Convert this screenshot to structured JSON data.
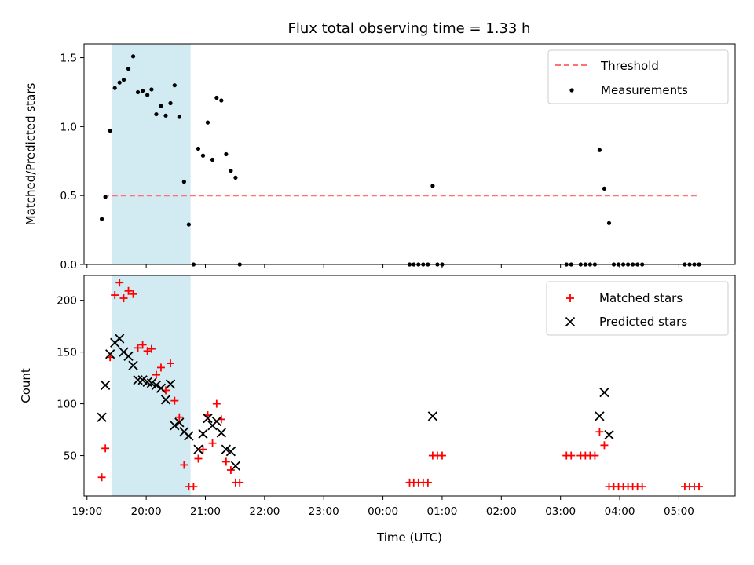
{
  "chart_data": [
    {
      "type": "scatter",
      "title": "Flux total observing time = 1.33 h",
      "xlabel": "",
      "ylabel": "Matched/Predicted stars",
      "xlim": [
        18.95,
        29.95
      ],
      "ylim": [
        0,
        1.6
      ],
      "yticks": [
        "0.0",
        "0.5",
        "1.0",
        "1.5"
      ],
      "highlight_span": [
        19.42,
        20.75
      ],
      "highlight_color": "#add8e6",
      "legend_position": "top-right",
      "grid": false,
      "threshold": {
        "name": "Threshold",
        "y": 0.5,
        "x_range": [
          19.28,
          29.35
        ],
        "color": "#ff7070"
      },
      "series": [
        {
          "name": "Measurements",
          "color": "#000000",
          "marker": "dot",
          "points": [
            [
              19.25,
              0.33
            ],
            [
              19.31,
              0.49
            ],
            [
              19.39,
              0.97
            ],
            [
              19.47,
              1.28
            ],
            [
              19.55,
              1.32
            ],
            [
              19.62,
              1.34
            ],
            [
              19.7,
              1.42
            ],
            [
              19.78,
              1.51
            ],
            [
              19.86,
              1.25
            ],
            [
              19.94,
              1.26
            ],
            [
              20.02,
              1.23
            ],
            [
              20.09,
              1.27
            ],
            [
              20.17,
              1.09
            ],
            [
              20.25,
              1.15
            ],
            [
              20.33,
              1.08
            ],
            [
              20.41,
              1.17
            ],
            [
              20.48,
              1.3
            ],
            [
              20.56,
              1.07
            ],
            [
              20.64,
              0.6
            ],
            [
              20.72,
              0.29
            ],
            [
              20.8,
              0.0
            ],
            [
              20.88,
              0.84
            ],
            [
              20.96,
              0.79
            ],
            [
              21.04,
              1.03
            ],
            [
              21.12,
              0.76
            ],
            [
              21.19,
              1.21
            ],
            [
              21.27,
              1.19
            ],
            [
              21.35,
              0.8
            ],
            [
              21.43,
              0.68
            ],
            [
              21.51,
              0.63
            ],
            [
              21.58,
              0.0
            ],
            [
              24.45,
              0.0
            ],
            [
              24.52,
              0.0
            ],
            [
              24.6,
              0.0
            ],
            [
              24.68,
              0.0
            ],
            [
              24.76,
              0.0
            ],
            [
              24.84,
              0.57
            ],
            [
              24.92,
              0.0
            ],
            [
              25.0,
              0.0
            ],
            [
              27.1,
              0.0
            ],
            [
              27.18,
              0.0
            ],
            [
              27.34,
              0.0
            ],
            [
              27.42,
              0.0
            ],
            [
              27.5,
              0.0
            ],
            [
              27.58,
              0.0
            ],
            [
              27.66,
              0.83
            ],
            [
              27.74,
              0.55
            ],
            [
              27.82,
              0.3
            ],
            [
              27.9,
              0.0
            ],
            [
              27.98,
              0.0
            ],
            [
              28.06,
              0.0
            ],
            [
              28.14,
              0.0
            ],
            [
              28.22,
              0.0
            ],
            [
              28.3,
              0.0
            ],
            [
              28.38,
              0.0
            ],
            [
              29.1,
              0.0
            ],
            [
              29.18,
              0.0
            ],
            [
              29.26,
              0.0
            ],
            [
              29.34,
              0.0
            ]
          ]
        }
      ]
    },
    {
      "type": "scatter",
      "title": "",
      "xlabel": "Time (UTC)",
      "ylabel": "Count",
      "xlim": [
        18.95,
        29.95
      ],
      "ylim": [
        11,
        224
      ],
      "yticks": [
        "50",
        "100",
        "150",
        "200"
      ],
      "xticks": [
        "19:00",
        "20:00",
        "21:00",
        "22:00",
        "23:00",
        "00:00",
        "01:00",
        "02:00",
        "03:00",
        "04:00",
        "05:00"
      ],
      "highlight_span": [
        19.42,
        20.75
      ],
      "highlight_color": "#add8e6",
      "legend_position": "top-right",
      "grid": false,
      "series": [
        {
          "name": "Matched stars",
          "color": "#ff0000",
          "marker": "plus",
          "points": [
            [
              19.25,
              29
            ],
            [
              19.31,
              57
            ],
            [
              19.39,
              145
            ],
            [
              19.47,
              205
            ],
            [
              19.55,
              217
            ],
            [
              19.62,
              202
            ],
            [
              19.7,
              209
            ],
            [
              19.78,
              206
            ],
            [
              19.86,
              154
            ],
            [
              19.94,
              157
            ],
            [
              20.02,
              151
            ],
            [
              20.09,
              153
            ],
            [
              20.17,
              128
            ],
            [
              20.25,
              135
            ],
            [
              20.33,
              113
            ],
            [
              20.41,
              139
            ],
            [
              20.48,
              103
            ],
            [
              20.56,
              87
            ],
            [
              20.64,
              41
            ],
            [
              20.72,
              20
            ],
            [
              20.8,
              20
            ],
            [
              20.88,
              47
            ],
            [
              20.96,
              56
            ],
            [
              21.04,
              89
            ],
            [
              21.12,
              62
            ],
            [
              21.19,
              100
            ],
            [
              21.27,
              85
            ],
            [
              21.35,
              44
            ],
            [
              21.43,
              36
            ],
            [
              21.51,
              24
            ],
            [
              21.58,
              24
            ],
            [
              24.45,
              24
            ],
            [
              24.52,
              24
            ],
            [
              24.6,
              24
            ],
            [
              24.68,
              24
            ],
            [
              24.76,
              24
            ],
            [
              24.84,
              50
            ],
            [
              24.92,
              50
            ],
            [
              25.0,
              50
            ],
            [
              27.1,
              50
            ],
            [
              27.18,
              50
            ],
            [
              27.34,
              50
            ],
            [
              27.42,
              50
            ],
            [
              27.5,
              50
            ],
            [
              27.58,
              50
            ],
            [
              27.66,
              73
            ],
            [
              27.74,
              60
            ],
            [
              27.82,
              20
            ],
            [
              27.9,
              20
            ],
            [
              27.98,
              20
            ],
            [
              28.06,
              20
            ],
            [
              28.14,
              20
            ],
            [
              28.22,
              20
            ],
            [
              28.3,
              20
            ],
            [
              28.38,
              20
            ],
            [
              29.1,
              20
            ],
            [
              29.18,
              20
            ],
            [
              29.26,
              20
            ],
            [
              29.34,
              20
            ]
          ]
        },
        {
          "name": "Predicted stars",
          "color": "#000000",
          "marker": "x",
          "points": [
            [
              19.25,
              87
            ],
            [
              19.31,
              118
            ],
            [
              19.39,
              148
            ],
            [
              19.47,
              159
            ],
            [
              19.55,
              163
            ],
            [
              19.62,
              150
            ],
            [
              19.7,
              146
            ],
            [
              19.78,
              137
            ],
            [
              19.86,
              123
            ],
            [
              19.94,
              123
            ],
            [
              20.02,
              121
            ],
            [
              20.09,
              120
            ],
            [
              20.17,
              118
            ],
            [
              20.25,
              115
            ],
            [
              20.33,
              104
            ],
            [
              20.41,
              119
            ],
            [
              20.48,
              79
            ],
            [
              20.56,
              82
            ],
            [
              20.64,
              73
            ],
            [
              20.72,
              69
            ],
            [
              20.88,
              56
            ],
            [
              20.96,
              71
            ],
            [
              21.04,
              86
            ],
            [
              21.12,
              79
            ],
            [
              21.19,
              83
            ],
            [
              21.27,
              72
            ],
            [
              21.35,
              56
            ],
            [
              21.43,
              54
            ],
            [
              21.51,
              40
            ],
            [
              24.84,
              88
            ],
            [
              27.66,
              88
            ],
            [
              27.74,
              111
            ],
            [
              27.82,
              70
            ]
          ]
        }
      ]
    }
  ]
}
